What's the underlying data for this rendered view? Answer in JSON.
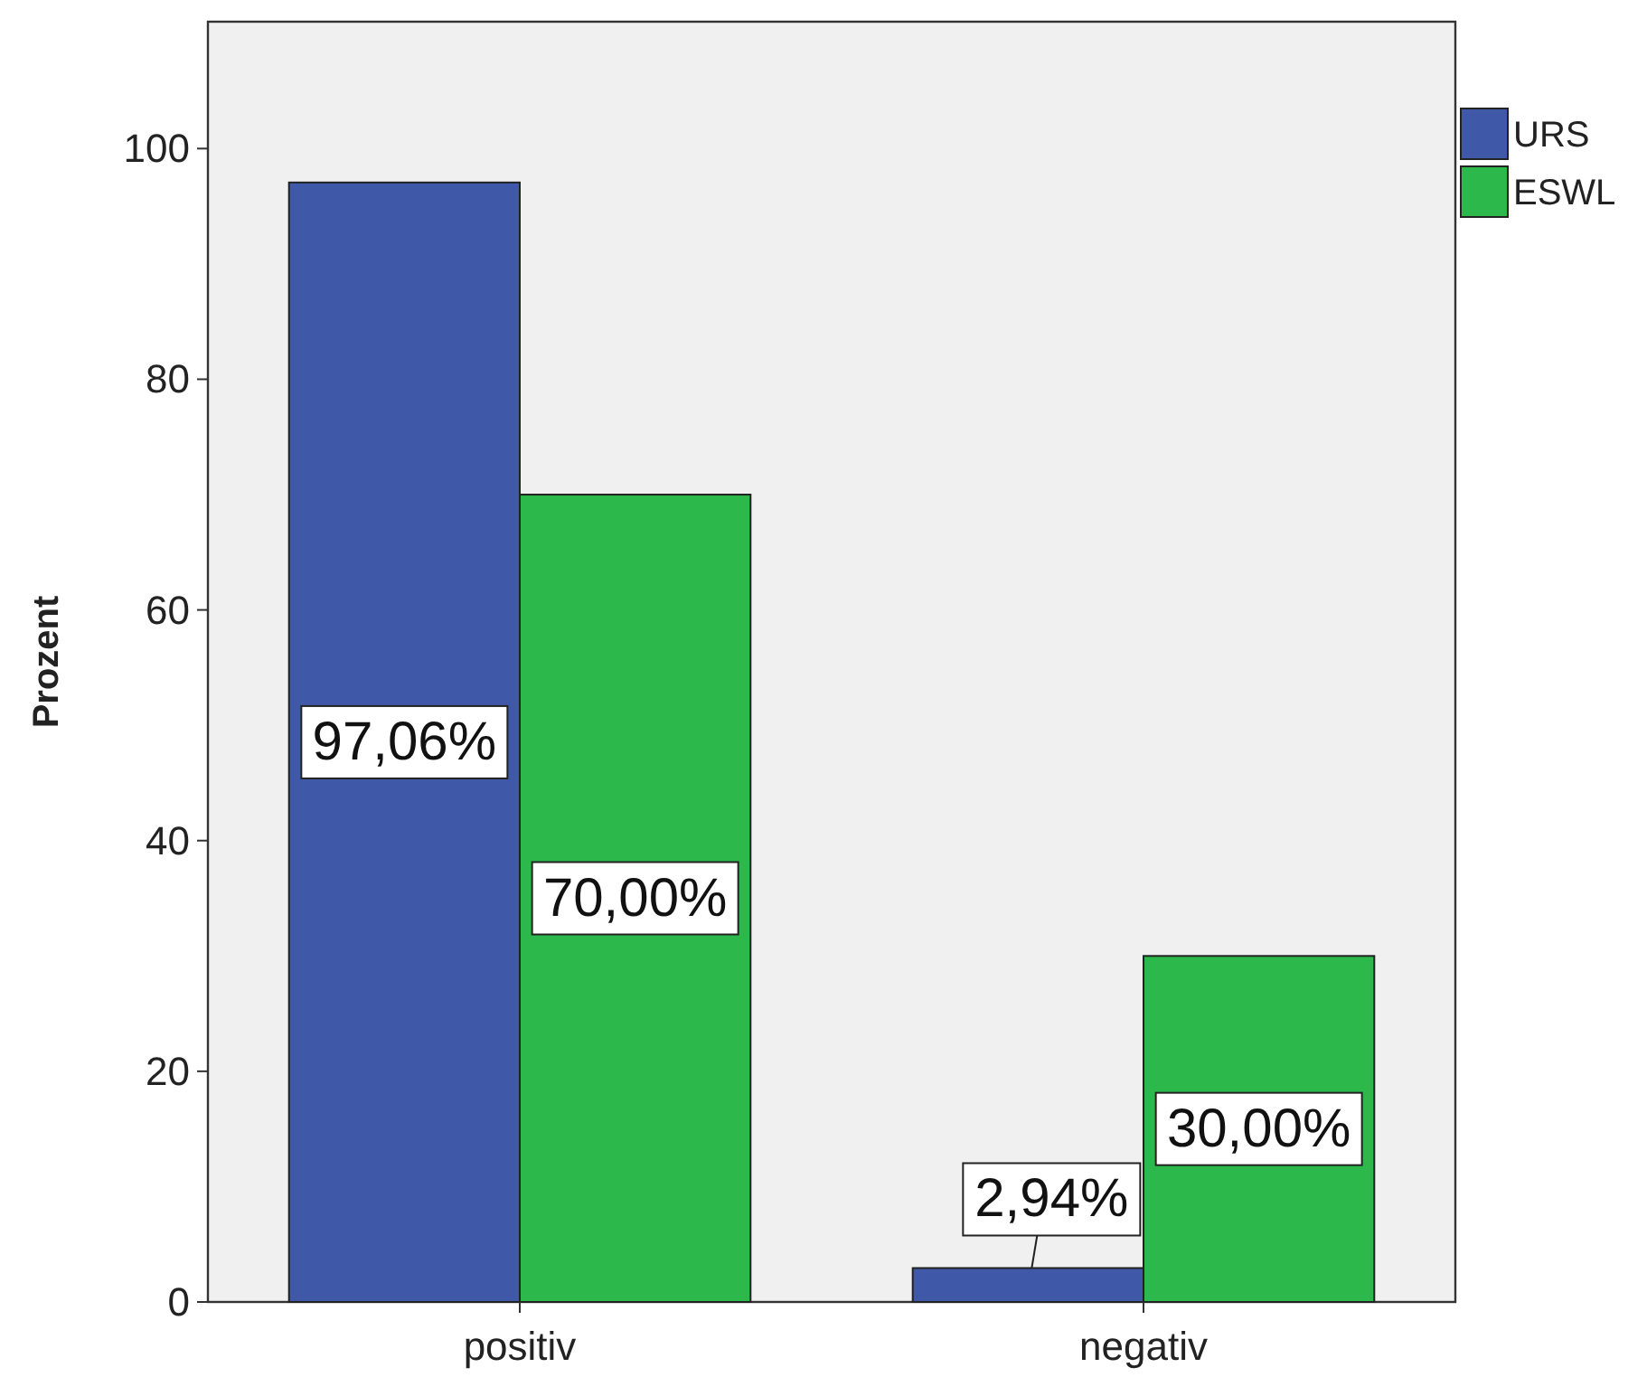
{
  "chart_data": {
    "type": "bar",
    "ylabel": "Prozent",
    "categories": [
      "positiv",
      "negativ"
    ],
    "series": [
      {
        "name": "URS",
        "color": "#3f58a8",
        "values": [
          97.06,
          2.94
        ],
        "value_labels": [
          "97,06%",
          "2,94%"
        ]
      },
      {
        "name": "ESWL",
        "color": "#2db84b",
        "values": [
          70,
          30
        ],
        "value_labels": [
          "70,00%",
          "30,00%"
        ]
      }
    ],
    "ylim": [
      0,
      111
    ],
    "yticks": [
      0,
      20,
      40,
      60,
      80,
      100
    ],
    "grid": false,
    "legend": "top right"
  }
}
